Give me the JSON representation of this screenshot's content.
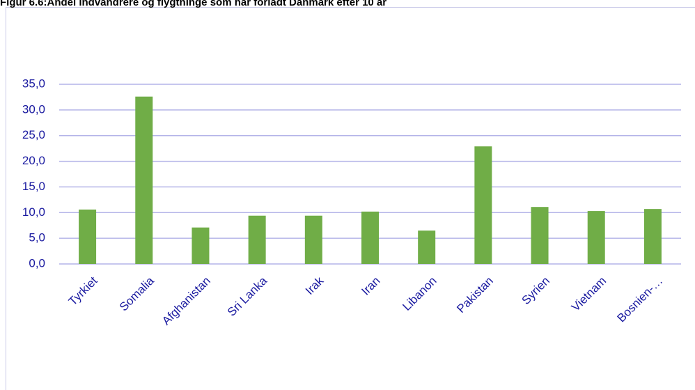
{
  "chart_data": {
    "type": "bar",
    "title": "Figur 6.6:Andel indvandrere og flygtninge som har forladt Danmark efter 10 år",
    "categories": [
      "Tyrkiet",
      "Somalia",
      "Afghanistan",
      "Sri Lanka",
      "Irak",
      "Iran",
      "Libanon",
      "Pakistan",
      "Syrien",
      "Vietnam",
      "Bosnien-…"
    ],
    "values": [
      10.6,
      32.6,
      7.1,
      9.4,
      9.4,
      10.2,
      6.5,
      22.9,
      11.1,
      10.3,
      10.7
    ],
    "color": "#70ad47",
    "ylim": [
      0,
      35
    ],
    "yticks": [
      {
        "value": 0,
        "label": "0,0"
      },
      {
        "value": 5,
        "label": "5,0"
      },
      {
        "value": 10,
        "label": "10,0"
      },
      {
        "value": 15,
        "label": "15,0"
      },
      {
        "value": 20,
        "label": "20,0"
      },
      {
        "value": 25,
        "label": "25,0"
      },
      {
        "value": 30,
        "label": "30,0"
      },
      {
        "value": 35,
        "label": "35,0"
      }
    ],
    "grid": true
  }
}
